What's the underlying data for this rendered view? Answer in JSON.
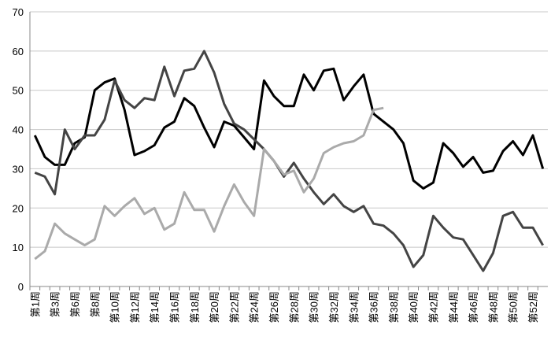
{
  "chart_data": {
    "type": "line",
    "categories": [
      "第1周",
      null,
      "第3周",
      null,
      "第6周",
      null,
      "第8周",
      null,
      "第10周",
      null,
      "第12周",
      null,
      "第14周",
      null,
      "第16周",
      null,
      "第18周",
      null,
      "第20周",
      null,
      "第22周",
      null,
      "第24周",
      null,
      "第26周",
      null,
      "第28周",
      null,
      "第30周",
      null,
      "第32周",
      null,
      "第34周",
      null,
      "第36周",
      null,
      "第38周",
      null,
      "第40周",
      null,
      "第42周",
      null,
      "第44周",
      null,
      "第46周",
      null,
      "第48周",
      null,
      "第50周",
      null,
      "第52周",
      null
    ],
    "series": [
      {
        "color": "#000000",
        "values": [
          38.5,
          33,
          31,
          31,
          36.5,
          38,
          50,
          52,
          53,
          45,
          33.5,
          34.5,
          36,
          40.5,
          42,
          48,
          46,
          40.5,
          35.5,
          42,
          41,
          38,
          35,
          52.5,
          48.5,
          46,
          46,
          54,
          50,
          55,
          55.5,
          47.5,
          51,
          54,
          44,
          42,
          40,
          36.5,
          27,
          25,
          26.5,
          36.5,
          34,
          30.5,
          33,
          29,
          29.5,
          34.5,
          37,
          33.5,
          38.5,
          30
        ]
      },
      {
        "color": "#444444",
        "values": [
          29,
          28,
          23.5,
          40,
          35,
          38.5,
          38.5,
          42.5,
          52.5,
          47.5,
          45.5,
          48,
          47.5,
          56,
          48.5,
          55,
          55.5,
          60,
          54.5,
          46.5,
          41.5,
          40,
          37.5,
          35,
          32,
          28,
          31.5,
          27.5,
          24,
          21,
          23.5,
          20.5,
          19,
          20.5,
          16,
          15.5,
          13.5,
          10.5,
          5,
          8,
          18,
          15,
          12.5,
          12,
          8,
          4,
          8.5,
          18,
          19,
          15,
          15,
          10.5
        ]
      },
      {
        "color": "#aaaaaa",
        "values": [
          7,
          9,
          16,
          13.5,
          12,
          10.5,
          12,
          20.5,
          18,
          20.5,
          22.5,
          18.5,
          20,
          14.5,
          16,
          24,
          19.5,
          19.5,
          14,
          20.5,
          26,
          21.5,
          18,
          35,
          32,
          28.5,
          29.5,
          24,
          27.5,
          34,
          35.5,
          36.5,
          37,
          38.5,
          45,
          45.5,
          null,
          null,
          null,
          null,
          null,
          null,
          null,
          null,
          null,
          null,
          null,
          null,
          null,
          null,
          null,
          null
        ]
      }
    ],
    "ylim": [
      0,
      70
    ],
    "yticks": [
      0,
      10,
      20,
      30,
      40,
      50,
      60,
      70
    ],
    "grid": true
  }
}
